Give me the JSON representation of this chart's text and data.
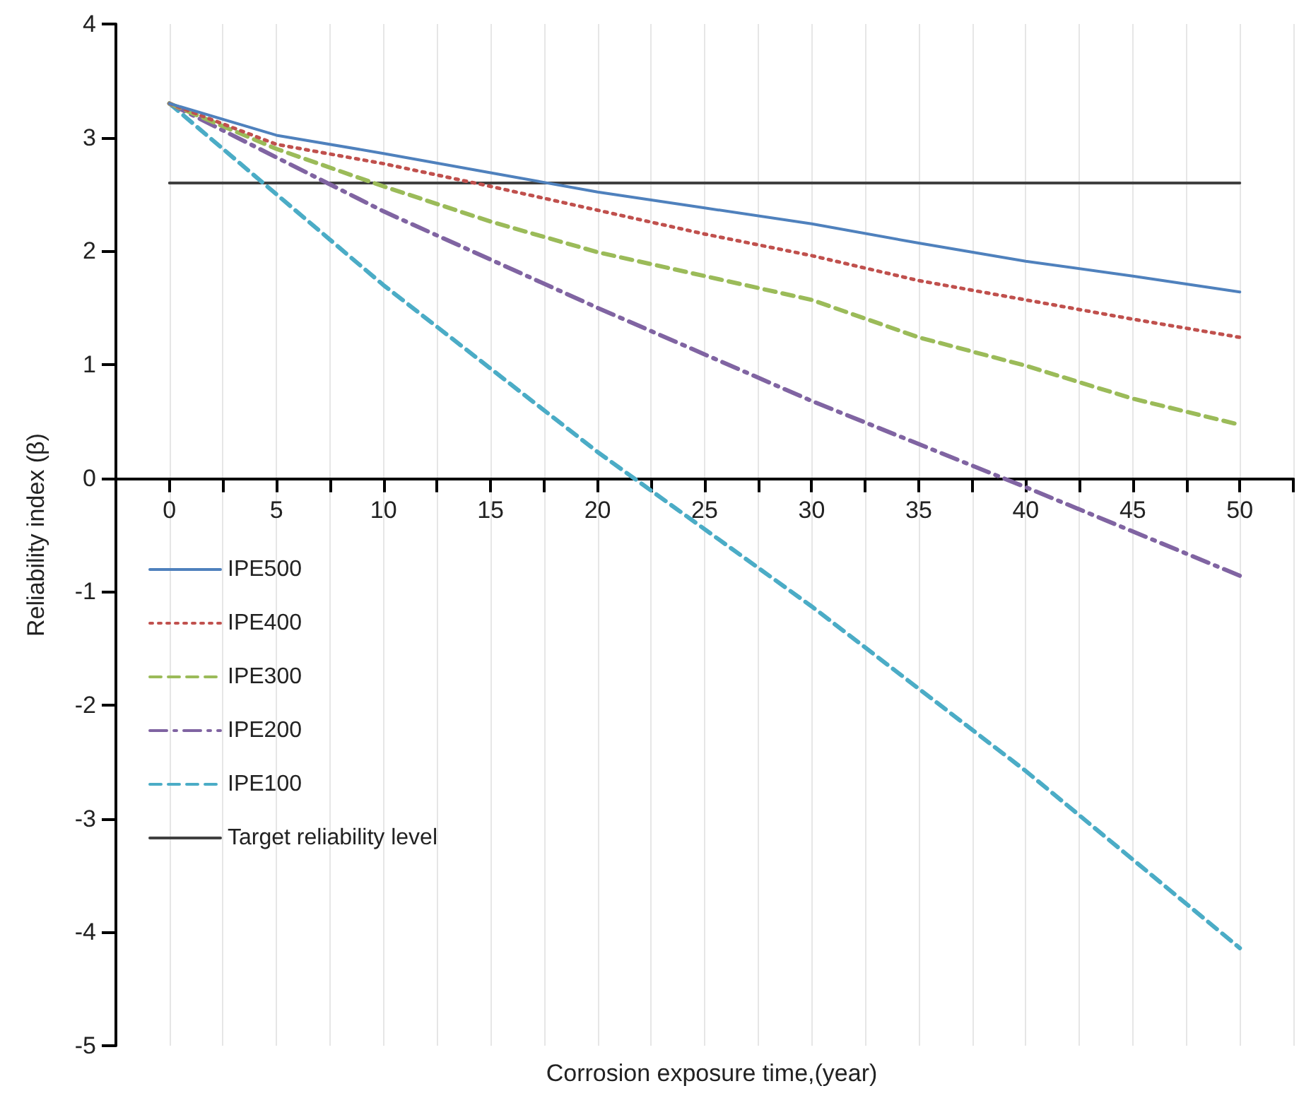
{
  "chart_data": {
    "type": "line",
    "xlabel": "Corrosion exposure time,(year)",
    "ylabel": "Reliability index (β)",
    "xlim": [
      -2.5,
      52.5
    ],
    "xticks": [
      0,
      {
        "value": 2.5,
        "label": null
      },
      5,
      {
        "value": 7.5,
        "label": null
      },
      10,
      {
        "value": 12.5,
        "label": null
      },
      15,
      {
        "value": 17.5,
        "label": null
      },
      20,
      {
        "value": 22.5,
        "label": null
      },
      25,
      {
        "value": 27.5,
        "label": null
      },
      30,
      {
        "value": 32.5,
        "label": null
      },
      35,
      {
        "value": 37.5,
        "label": null
      },
      40,
      {
        "value": 42.5,
        "label": null
      },
      45,
      {
        "value": 47.5,
        "label": null
      },
      50,
      {
        "value": 52.5,
        "label": null
      }
    ],
    "ylim": [
      -5,
      4
    ],
    "yticks": [
      -5,
      -4,
      -3,
      -2,
      -1,
      0,
      1,
      2,
      3,
      4
    ],
    "grid": "x",
    "legend": "left",
    "series": [
      {
        "name": "IPE500",
        "color": "#4f81bd",
        "line_style": "solid",
        "x": [
          0,
          5,
          10,
          15,
          20,
          25,
          30,
          35,
          40,
          45,
          50
        ],
        "values": [
          3.3,
          3.02,
          2.86,
          2.69,
          2.52,
          2.38,
          2.24,
          2.07,
          1.91,
          1.78,
          1.64
        ]
      },
      {
        "name": "IPE400",
        "color": "#c0504d",
        "line_style": "dotted",
        "x": [
          0,
          5,
          10,
          15,
          20,
          25,
          30,
          35,
          40,
          45,
          50
        ],
        "values": [
          3.3,
          2.94,
          2.77,
          2.57,
          2.36,
          2.15,
          1.96,
          1.74,
          1.57,
          1.4,
          1.24
        ]
      },
      {
        "name": "IPE300",
        "color": "#9bbb59",
        "line_style": "dashed",
        "x": [
          0,
          5,
          10,
          15,
          20,
          25,
          30,
          35,
          40,
          45,
          50
        ],
        "values": [
          3.3,
          2.9,
          2.57,
          2.26,
          1.99,
          1.78,
          1.57,
          1.24,
          0.99,
          0.7,
          0.47
        ]
      },
      {
        "name": "IPE200",
        "color": "#8064a2",
        "line_style": "dashdot",
        "x": [
          0,
          10,
          20,
          30,
          40,
          50
        ],
        "values": [
          3.3,
          2.35,
          1.5,
          0.68,
          -0.08,
          -0.86
        ]
      },
      {
        "name": "IPE100",
        "color": "#4bacc6",
        "line_style": "dashed",
        "x": [
          0,
          10,
          20,
          30,
          40,
          50
        ],
        "values": [
          3.3,
          1.7,
          0.23,
          -1.13,
          -2.58,
          -4.14
        ]
      },
      {
        "name": "Target reliability level",
        "color": "#404040",
        "line_style": "solid",
        "x": [
          0,
          50
        ],
        "values": [
          2.6,
          2.6
        ]
      }
    ]
  }
}
